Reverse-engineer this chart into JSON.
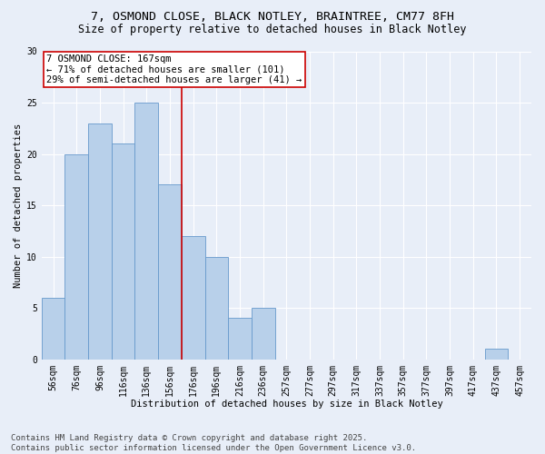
{
  "title1": "7, OSMOND CLOSE, BLACK NOTLEY, BRAINTREE, CM77 8FH",
  "title2": "Size of property relative to detached houses in Black Notley",
  "xlabel": "Distribution of detached houses by size in Black Notley",
  "ylabel": "Number of detached properties",
  "bar_labels": [
    "56sqm",
    "76sqm",
    "96sqm",
    "116sqm",
    "136sqm",
    "156sqm",
    "176sqm",
    "196sqm",
    "216sqm",
    "236sqm",
    "257sqm",
    "277sqm",
    "297sqm",
    "317sqm",
    "337sqm",
    "357sqm",
    "377sqm",
    "397sqm",
    "417sqm",
    "437sqm",
    "457sqm"
  ],
  "bar_values": [
    6,
    20,
    23,
    21,
    25,
    17,
    12,
    10,
    4,
    5,
    0,
    0,
    0,
    0,
    0,
    0,
    0,
    0,
    0,
    1,
    0
  ],
  "bar_color": "#b8d0ea",
  "bar_edge_color": "#6699cc",
  "vline_x": 5.5,
  "vline_color": "#cc0000",
  "annotation_box_text": "7 OSMOND CLOSE: 167sqm\n← 71% of detached houses are smaller (101)\n29% of semi-detached houses are larger (41) →",
  "ylim": [
    0,
    30
  ],
  "yticks": [
    0,
    5,
    10,
    15,
    20,
    25,
    30
  ],
  "bg_color": "#e8eef8",
  "footer_text": "Contains HM Land Registry data © Crown copyright and database right 2025.\nContains public sector information licensed under the Open Government Licence v3.0.",
  "grid_color": "#ffffff",
  "title_fontsize": 9.5,
  "subtitle_fontsize": 8.5,
  "annotation_fontsize": 7.5,
  "axis_label_fontsize": 7.5,
  "tick_fontsize": 7,
  "ylabel_fontsize": 7.5
}
